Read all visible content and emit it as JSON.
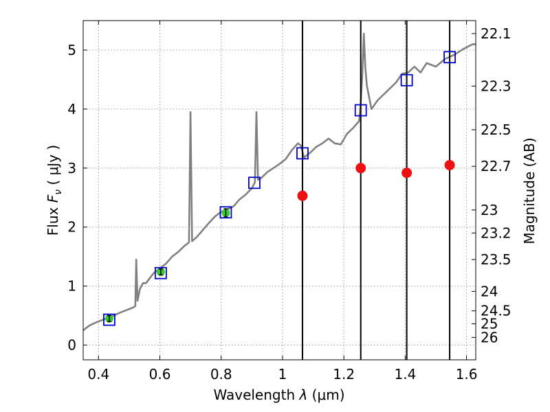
{
  "chart_data": {
    "type": "line",
    "xlabel_prefix": "Wavelength  ",
    "xlabel_lambda": "λ",
    "xlabel_units": " (μm)",
    "ylabel_text": "Flux  ",
    "ylabel_F": "F",
    "ylabel_nu": "ν",
    "ylabel_units": "  ( μJy )",
    "y2label": "Magnitude (AB)",
    "xlim": [
      0.35,
      1.63
    ],
    "ylim": [
      -0.25,
      5.5
    ],
    "grid": true,
    "x_ticks": [
      0.4,
      0.6,
      0.8,
      1.0,
      1.2,
      1.4,
      1.6
    ],
    "x_tick_labels": [
      "0.4",
      "0.6",
      "0.8",
      "1",
      "1.2",
      "1.4",
      "1.6"
    ],
    "y_ticks": [
      0,
      1,
      2,
      3,
      4,
      5
    ],
    "y_tick_labels": [
      "0",
      "1",
      "2",
      "3",
      "4",
      "5"
    ],
    "y2_ticks": [
      {
        "flux": 5.28,
        "label": "22.1"
      },
      {
        "flux": 4.39,
        "label": "22.3"
      },
      {
        "flux": 3.65,
        "label": "22.5"
      },
      {
        "flux": 3.03,
        "label": "22.7"
      },
      {
        "flux": 2.29,
        "label": "23"
      },
      {
        "flux": 1.9,
        "label": "23.2"
      },
      {
        "flux": 1.45,
        "label": "23.5"
      },
      {
        "flux": 0.91,
        "label": "24"
      },
      {
        "flux": 0.58,
        "label": "24.5"
      },
      {
        "flux": 0.36,
        "label": "25"
      },
      {
        "flux": 0.13,
        "label": "26"
      }
    ],
    "vertical_lines": [
      1.065,
      1.255,
      1.405,
      1.545
    ],
    "colors": {
      "spectrum": "#808080",
      "model_box": "#0000cc",
      "observed": "#33cc33",
      "red_points": "#ee1111",
      "vline": "#000000",
      "grid": "#999999"
    },
    "spectrum": {
      "x": [
        0.35,
        0.37,
        0.39,
        0.41,
        0.43,
        0.45,
        0.47,
        0.49,
        0.51,
        0.52,
        0.523,
        0.527,
        0.535,
        0.545,
        0.555,
        0.565,
        0.58,
        0.6,
        0.62,
        0.64,
        0.66,
        0.68,
        0.695,
        0.7,
        0.705,
        0.72,
        0.74,
        0.76,
        0.78,
        0.8,
        0.82,
        0.84,
        0.86,
        0.88,
        0.9,
        0.91,
        0.915,
        0.92,
        0.93,
        0.95,
        0.97,
        0.99,
        1.01,
        1.03,
        1.05,
        1.06,
        1.07,
        1.09,
        1.11,
        1.13,
        1.15,
        1.17,
        1.19,
        1.21,
        1.23,
        1.25,
        1.255,
        1.26,
        1.265,
        1.27,
        1.275,
        1.29,
        1.31,
        1.33,
        1.35,
        1.37,
        1.39,
        1.41,
        1.43,
        1.45,
        1.47,
        1.5,
        1.53,
        1.56,
        1.59,
        1.62,
        1.63
      ],
      "y": [
        0.25,
        0.33,
        0.38,
        0.42,
        0.46,
        0.5,
        0.55,
        0.59,
        0.63,
        0.66,
        1.45,
        0.75,
        0.95,
        1.05,
        1.05,
        1.12,
        1.22,
        1.3,
        1.38,
        1.5,
        1.58,
        1.68,
        1.74,
        3.95,
        1.76,
        1.83,
        1.95,
        2.07,
        2.18,
        2.26,
        2.3,
        2.35,
        2.47,
        2.55,
        2.66,
        2.76,
        3.95,
        2.8,
        2.83,
        2.93,
        3.0,
        3.07,
        3.15,
        3.3,
        3.42,
        3.38,
        3.18,
        3.26,
        3.36,
        3.42,
        3.5,
        3.42,
        3.4,
        3.58,
        3.68,
        3.8,
        4.1,
        4.55,
        5.28,
        4.7,
        4.4,
        4.0,
        4.15,
        4.25,
        4.35,
        4.45,
        4.6,
        4.62,
        4.72,
        4.62,
        4.78,
        4.72,
        4.85,
        4.92,
        5.02,
        5.1,
        5.1
      ]
    },
    "model_boxes": [
      {
        "x": 0.435,
        "y": 0.43
      },
      {
        "x": 0.603,
        "y": 1.22
      },
      {
        "x": 0.815,
        "y": 2.25
      },
      {
        "x": 0.908,
        "y": 2.75
      },
      {
        "x": 1.065,
        "y": 3.25
      },
      {
        "x": 1.255,
        "y": 3.98
      },
      {
        "x": 1.405,
        "y": 4.49
      },
      {
        "x": 1.545,
        "y": 4.88
      }
    ],
    "observed_points": [
      {
        "x": 0.435,
        "y": 0.45,
        "err": 0.05
      },
      {
        "x": 0.603,
        "y": 1.24,
        "err": 0.05
      },
      {
        "x": 0.815,
        "y": 2.24,
        "err": 0.07
      }
    ],
    "red_points": [
      {
        "x": 1.065,
        "y": 2.53
      },
      {
        "x": 1.255,
        "y": 3.0
      },
      {
        "x": 1.405,
        "y": 2.92
      },
      {
        "x": 1.545,
        "y": 3.05
      }
    ]
  }
}
